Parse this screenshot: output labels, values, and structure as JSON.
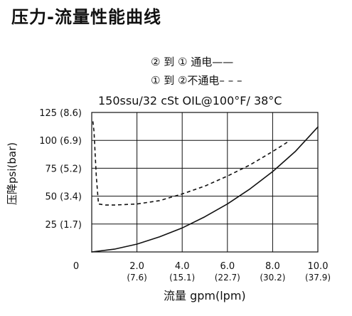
{
  "page": {
    "title": "压力-流量性能曲线"
  },
  "legend": {
    "solid_label": "② 到 ① 通电——",
    "dashed_label": "① 到 ②不通电– – –"
  },
  "chart_data": {
    "type": "line",
    "title": "150ssu/32 cSt OIL@100°F/ 38°C",
    "xlabel": "流量 gpm(lpm)",
    "ylabel": "压降psi(bar)",
    "xlim": [
      0,
      10
    ],
    "ylim": [
      0,
      125
    ],
    "grid": true,
    "x_ticks": [
      {
        "value": 0,
        "label": "0",
        "sub": ""
      },
      {
        "value": 2,
        "label": "2.0",
        "sub": "(7.6)"
      },
      {
        "value": 4,
        "label": "4.0",
        "sub": "(15.1)"
      },
      {
        "value": 6,
        "label": "6.0",
        "sub": "(22.7)"
      },
      {
        "value": 8,
        "label": "8.0",
        "sub": "(30.2)"
      },
      {
        "value": 10,
        "label": "10.0",
        "sub": "(37.9)"
      }
    ],
    "y_ticks": [
      {
        "value": 25,
        "label": "25 (1.7)"
      },
      {
        "value": 50,
        "label": "50 (3.4)"
      },
      {
        "value": 75,
        "label": "75 (5.2)"
      },
      {
        "value": 100,
        "label": "100 (6.9)"
      },
      {
        "value": 125,
        "label": "125 (8.6)"
      }
    ],
    "series": [
      {
        "style": "solid",
        "x": [
          0,
          1,
          2,
          3,
          4,
          5,
          6,
          7,
          8,
          9,
          10
        ],
        "y": [
          0,
          2.5,
          7,
          13.5,
          21.5,
          31.5,
          43,
          56.5,
          72,
          90,
          112
        ]
      },
      {
        "style": "dashed",
        "x": [
          0.05,
          0.1,
          0.2,
          0.3,
          0.6,
          1,
          2,
          3,
          4,
          5,
          6,
          7,
          8,
          8.7
        ],
        "y": [
          117,
          108,
          68,
          43,
          42,
          42,
          43,
          46,
          52,
          59,
          68,
          78,
          90,
          99
        ]
      }
    ]
  }
}
